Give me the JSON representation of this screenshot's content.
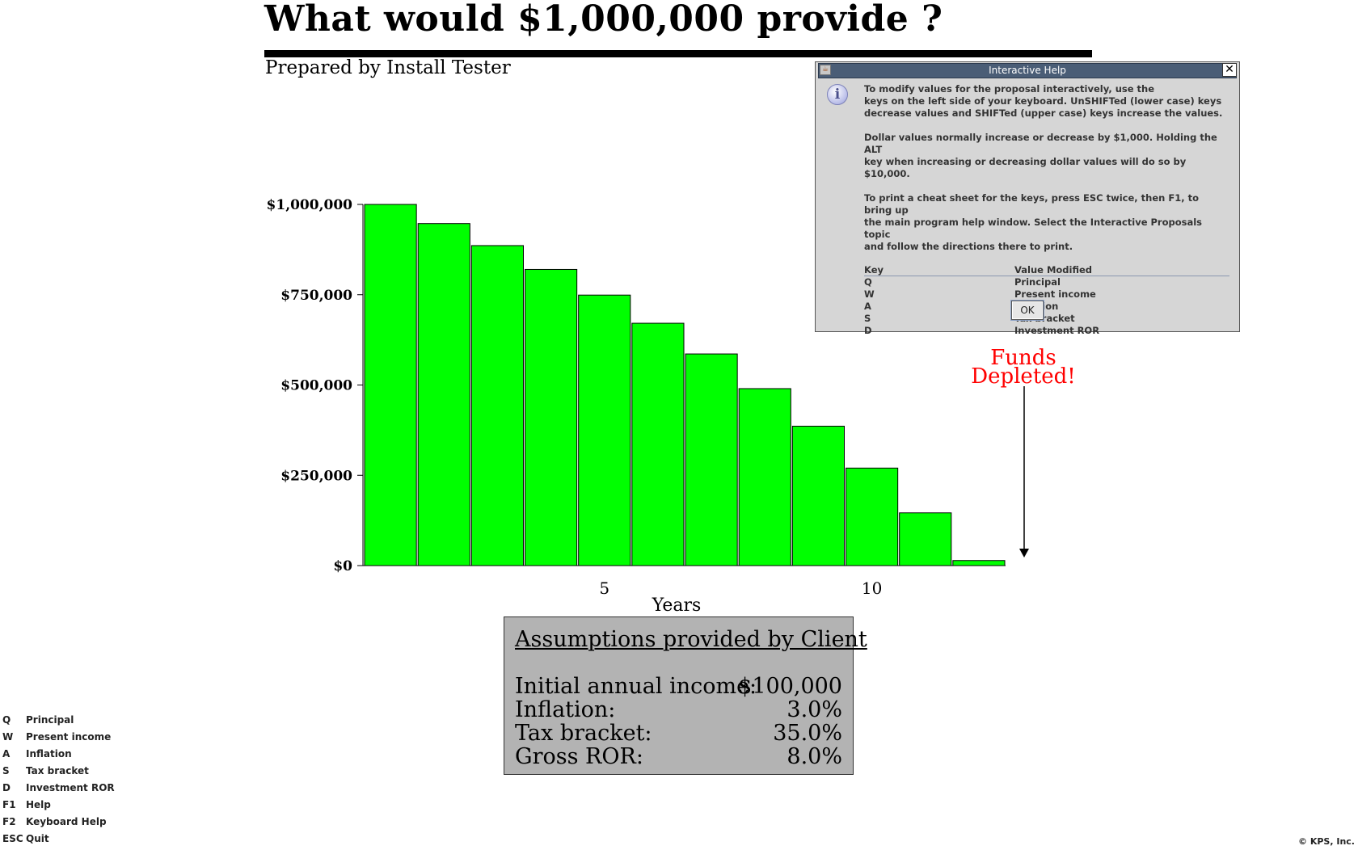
{
  "title": "What would $1,000,000 provide ?",
  "subtitle": "Prepared by Install Tester",
  "chart_data": {
    "type": "bar",
    "xlabel": "Years",
    "ylabel": "",
    "x": [
      1,
      2,
      3,
      4,
      5,
      6,
      7,
      8,
      9,
      10,
      11,
      12
    ],
    "values": [
      1000000,
      947000,
      886000,
      820000,
      749000,
      671000,
      586000,
      490000,
      386000,
      270000,
      146000,
      14000
    ],
    "ylim": [
      0,
      1000000
    ],
    "xlim": [
      0.5,
      12.5
    ],
    "yticks": [
      0,
      250000,
      500000,
      750000,
      1000000
    ],
    "ytick_labels": [
      "$0",
      "$250,000",
      "$500,000",
      "$750,000",
      "$1,000,000"
    ],
    "xticks": [
      5,
      10
    ],
    "xtick_labels": [
      "5",
      "10"
    ],
    "bar_color": "#00ff00",
    "annotation": {
      "text_line1": "Funds",
      "text_line2": "Depleted!",
      "color": "#ff0000"
    },
    "grid": false
  },
  "assumptions": {
    "title": "Assumptions provided by Client",
    "rows": [
      {
        "label": "Initial annual income:",
        "value": "$100,000"
      },
      {
        "label": "Inflation:",
        "value": "3.0%"
      },
      {
        "label": "Tax bracket:",
        "value": "35.0%"
      },
      {
        "label": "Gross ROR:",
        "value": "8.0%"
      }
    ]
  },
  "key_legend": [
    {
      "key": "Q",
      "desc": "Principal"
    },
    {
      "key": "W",
      "desc": "Present income"
    },
    {
      "key": "A",
      "desc": "Inflation"
    },
    {
      "key": "S",
      "desc": "Tax bracket"
    },
    {
      "key": "D",
      "desc": "Investment ROR"
    },
    {
      "key": "F1",
      "desc": "Help"
    },
    {
      "key": "F2",
      "desc": "Keyboard Help"
    },
    {
      "key": "ESC",
      "desc": "Quit"
    }
  ],
  "copyright": "© KPS, Inc.",
  "dialog": {
    "title": "Interactive Help",
    "close_glyph": "✕",
    "info_glyph": "i",
    "para1_line1": "To modify values for the proposal interactively, use the",
    "para1_line2": "keys on the left side of your keyboard. UnSHIFTed (lower case) keys",
    "para1_line3": "decrease values and SHIFTed (upper case) keys increase the values.",
    "para2_line1": "Dollar values normally increase or decrease by $1,000. Holding the ALT",
    "para2_line2": "key when increasing or decreasing dollar values will do so by $10,000.",
    "para3_line1": "To print a cheat sheet for the keys, press ESC twice, then F1, to bring up",
    "para3_line2": "the main program help window. Select the Interactive Proposals topic",
    "para3_line3": "and follow the directions there to print.",
    "table_headers": {
      "key": "Key",
      "value": "Value Modified"
    },
    "table_rows": [
      {
        "key": "Q",
        "value": "Principal"
      },
      {
        "key": "W",
        "value": "Present income"
      },
      {
        "key": "A",
        "value": "Inflation"
      },
      {
        "key": "S",
        "value": "Tax bracket"
      },
      {
        "key": "D",
        "value": "Investment ROR"
      }
    ],
    "ok_label": "OK"
  }
}
